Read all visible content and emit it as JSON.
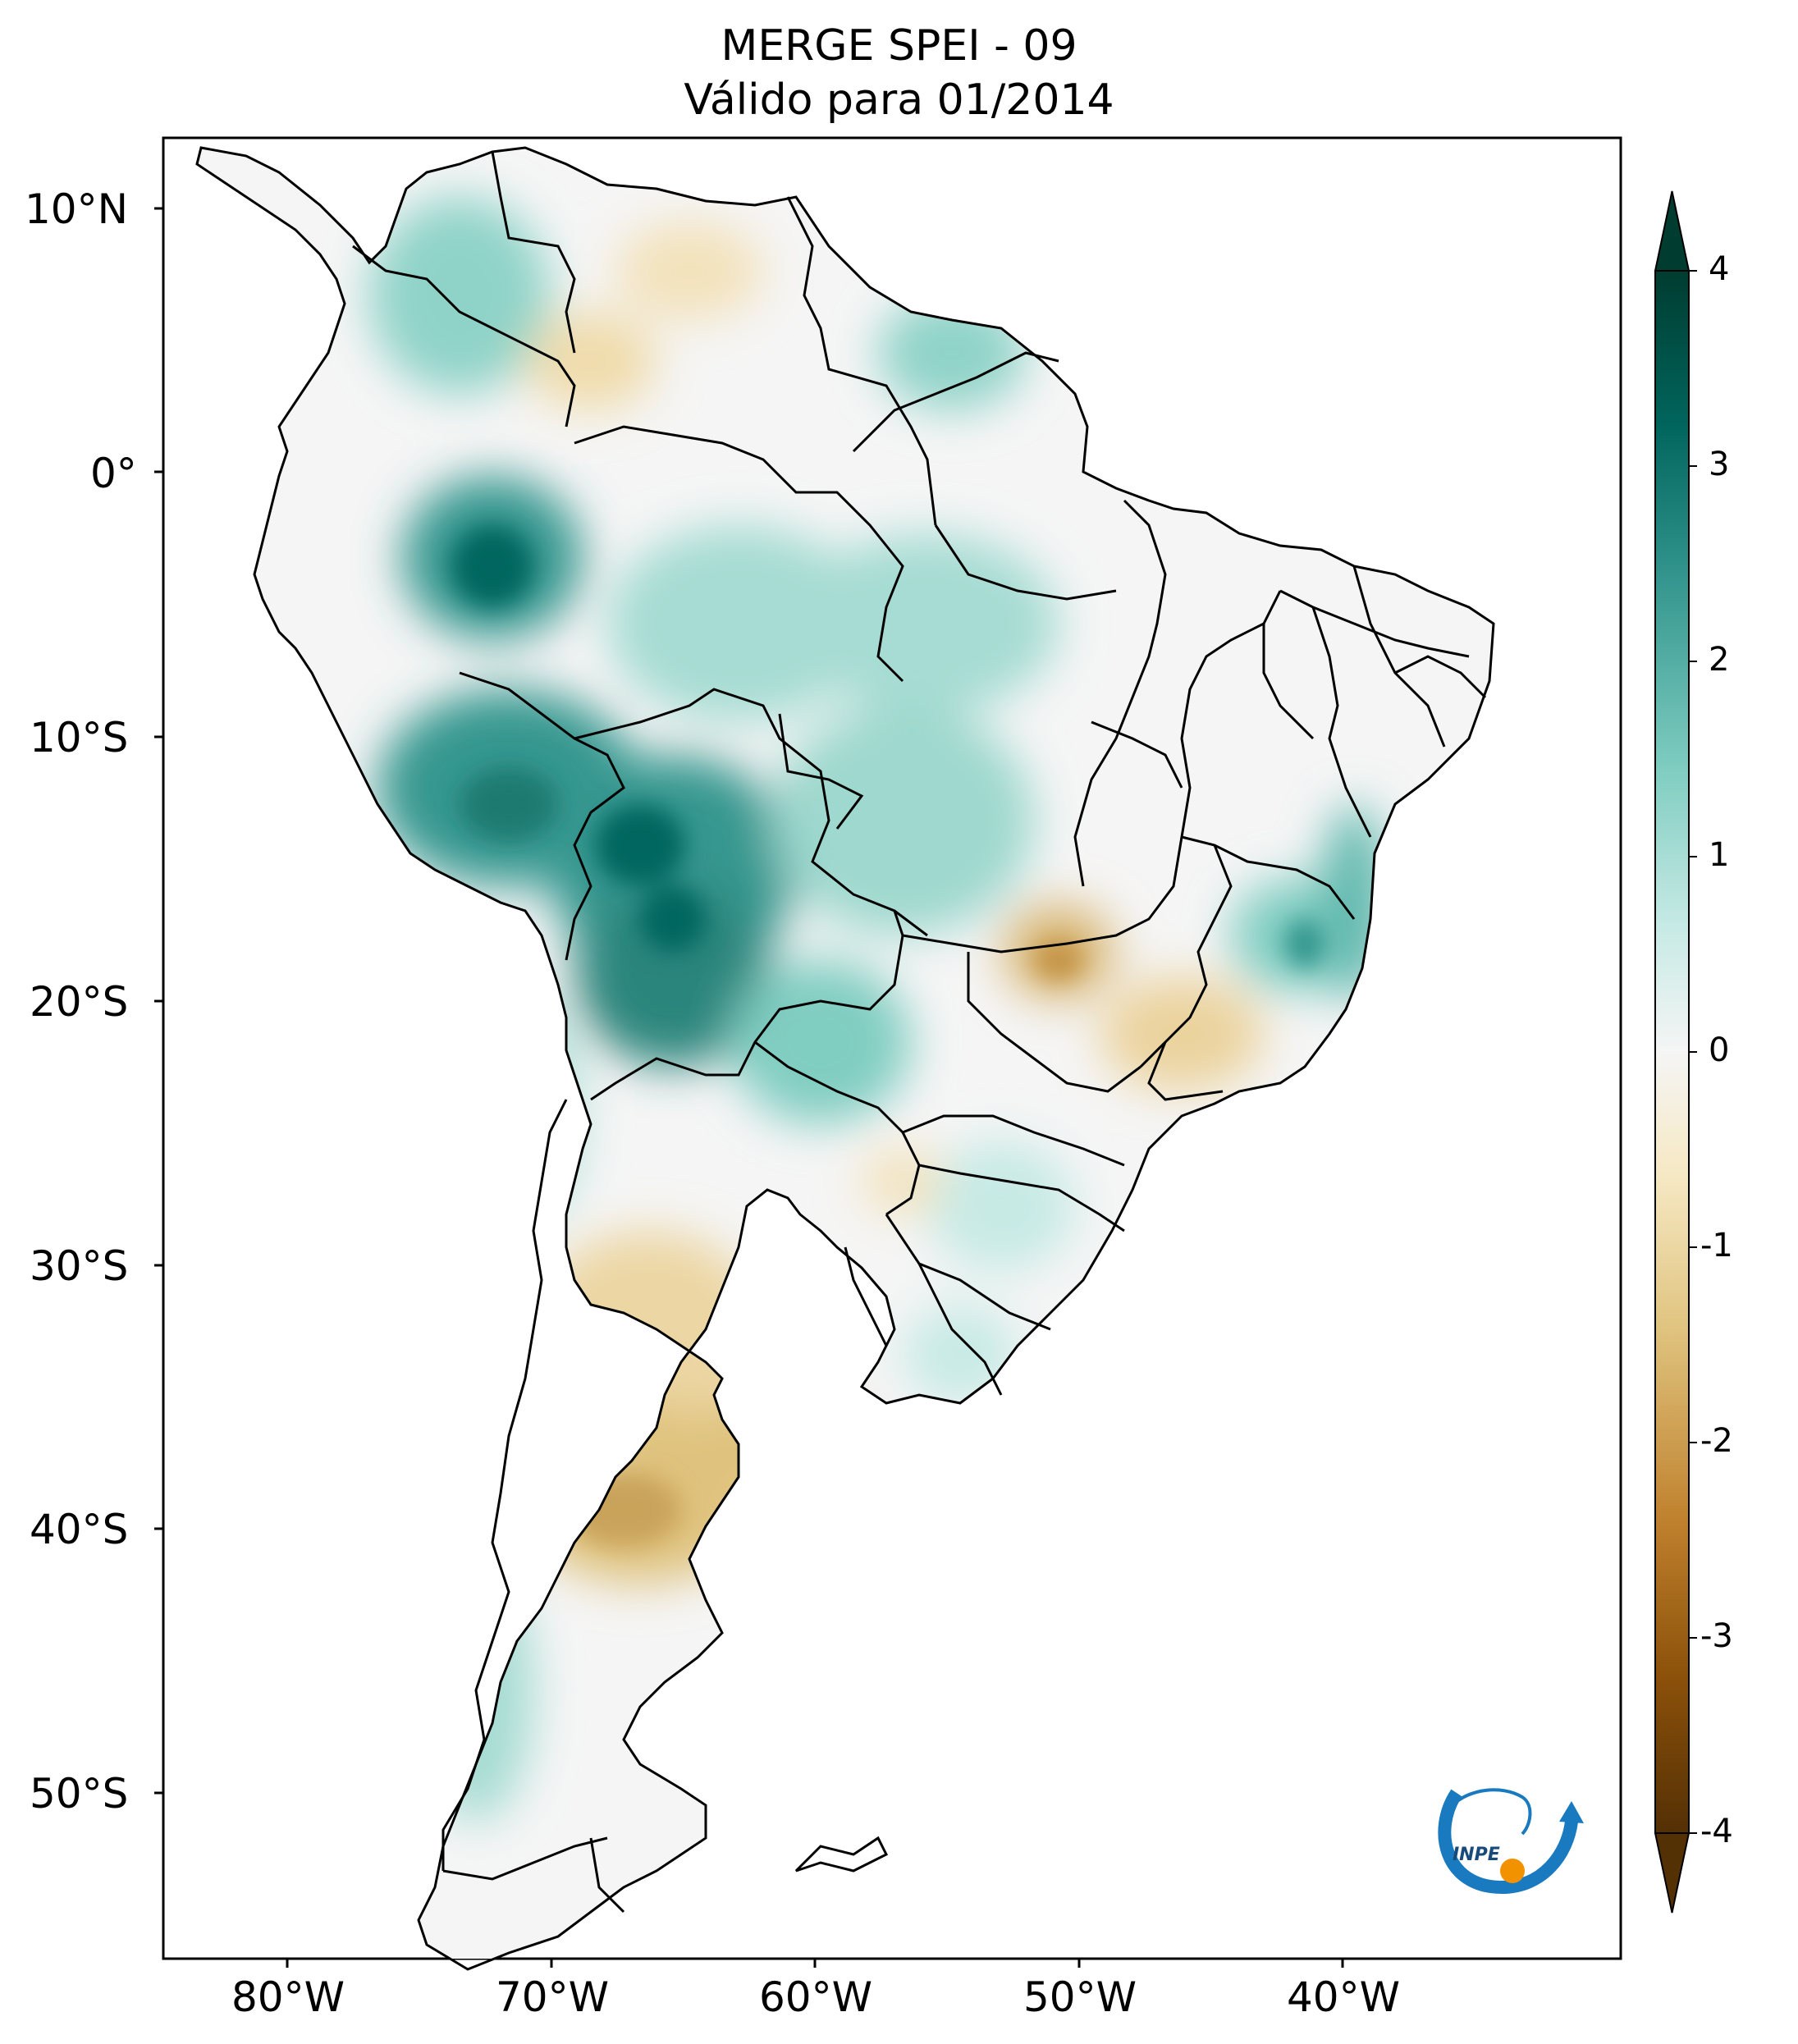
{
  "title": {
    "line1": "MERGE   SPEI - 09",
    "line2": "Válido para 01/2014"
  },
  "axes": {
    "lat_ticks": [
      "10°N",
      "0°",
      "10°S",
      "20°S",
      "30°S",
      "40°S",
      "50°S"
    ],
    "lon_ticks": [
      "80°W",
      "70°W",
      "60°W",
      "50°W",
      "40°W"
    ]
  },
  "colorbar": {
    "ticks": [
      "4",
      "3",
      "2",
      "1",
      "0",
      "-1",
      "-2",
      "-3",
      "-4"
    ],
    "min": -4,
    "max": 4,
    "extend": "both",
    "colors": {
      "dry_extreme": "#543005",
      "dry_strong": "#8c510a",
      "dry_moderate": "#bf812d",
      "dry_mild": "#dfc27d",
      "dry_slight": "#f6e8c3",
      "neutral": "#f5f5f5",
      "wet_slight": "#c7eae5",
      "wet_mild": "#80cdc1",
      "wet_moderate": "#35978f",
      "wet_strong": "#01665e",
      "wet_extreme": "#003c30"
    }
  },
  "logo": {
    "text": "INPE",
    "colors": {
      "arc": "#1a7abf",
      "dot": "#f39200"
    }
  },
  "map": {
    "ocean_color": "#ffffff",
    "border_color": "#000000"
  }
}
